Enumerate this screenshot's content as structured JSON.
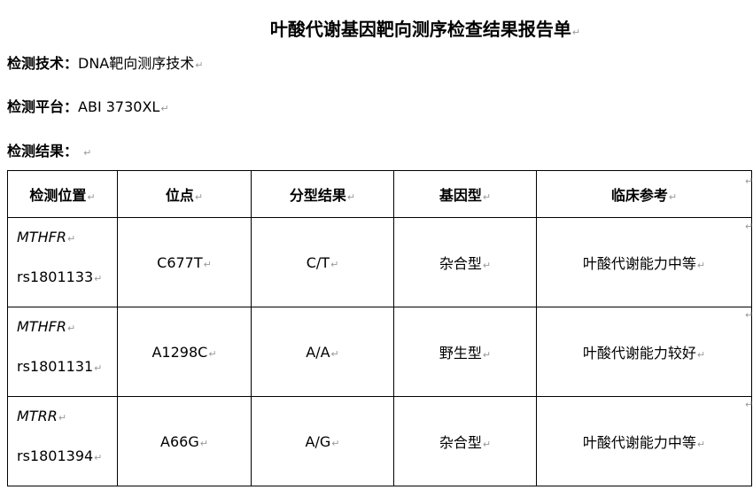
{
  "para_mark": "↵",
  "title": "叶酸代谢基因靶向测序检查结果报告单",
  "technique": {
    "label": "检测技术：",
    "value": "DNA靶向测序技术"
  },
  "platform": {
    "label": "检测平台：",
    "value": "ABI 3730XL"
  },
  "results_label": "检测结果：",
  "table": {
    "headers": [
      "检测位置",
      "位点",
      "分型结果",
      "基因型",
      "临床参考"
    ],
    "rows": [
      {
        "gene": "MTHFR",
        "rs": "rs1801133",
        "site": "C677T",
        "genotype_call": "C/T",
        "type": "杂合型",
        "clinical": "叶酸代谢能力中等"
      },
      {
        "gene": "MTHFR",
        "rs": "rs1801131",
        "site": "A1298C",
        "genotype_call": "A/A",
        "type": "野生型",
        "clinical": "叶酸代谢能力较好"
      },
      {
        "gene": "MTRR",
        "rs": "rs1801394",
        "site": "A66G",
        "genotype_call": "A/G",
        "type": "杂合型",
        "clinical": "叶酸代谢能力中等"
      }
    ]
  }
}
